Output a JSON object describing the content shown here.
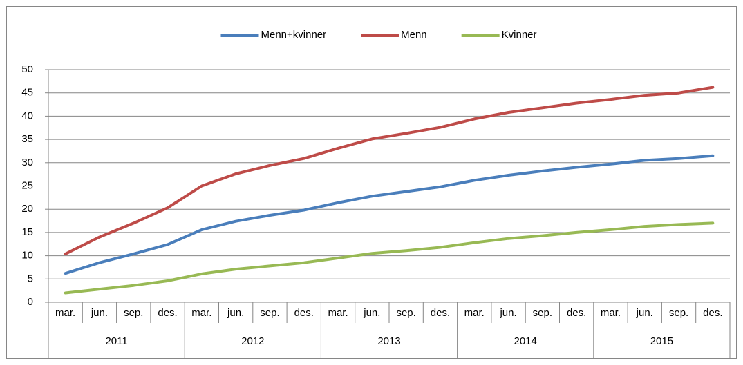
{
  "chart_data": {
    "type": "line",
    "categories": [
      "mar.",
      "jun.",
      "sep.",
      "des.",
      "mar.",
      "jun.",
      "sep.",
      "des.",
      "mar.",
      "jun.",
      "sep.",
      "des.",
      "mar.",
      "jun.",
      "sep.",
      "des.",
      "mar.",
      "jun.",
      "sep.",
      "des."
    ],
    "groups": [
      "2011",
      "2012",
      "2013",
      "2014",
      "2015"
    ],
    "series": [
      {
        "name": "Menn+kvinner",
        "color": "#4a7ebb",
        "values": [
          6.2,
          8.5,
          10.4,
          12.4,
          15.6,
          17.4,
          18.7,
          19.8,
          21.4,
          22.8,
          23.8,
          24.8,
          26.2,
          27.3,
          28.2,
          29.0,
          29.7,
          30.5,
          30.9,
          31.5
        ]
      },
      {
        "name": "Menn",
        "color": "#be4b48",
        "values": [
          10.4,
          14.0,
          17.0,
          20.3,
          25.0,
          27.6,
          29.4,
          30.9,
          33.1,
          35.1,
          36.3,
          37.6,
          39.4,
          40.8,
          41.8,
          42.8,
          43.6,
          44.5,
          45.0,
          46.2
        ]
      },
      {
        "name": "Kvinner",
        "color": "#98b954",
        "values": [
          2.0,
          2.8,
          3.6,
          4.6,
          6.1,
          7.1,
          7.8,
          8.5,
          9.5,
          10.5,
          11.1,
          11.8,
          12.8,
          13.7,
          14.3,
          15.0,
          15.6,
          16.3,
          16.7,
          17.0
        ]
      }
    ],
    "ylim": [
      0,
      50
    ],
    "yticks": [
      0,
      5,
      10,
      15,
      20,
      25,
      30,
      35,
      40,
      45,
      50
    ],
    "grid": true,
    "legend": "top"
  }
}
